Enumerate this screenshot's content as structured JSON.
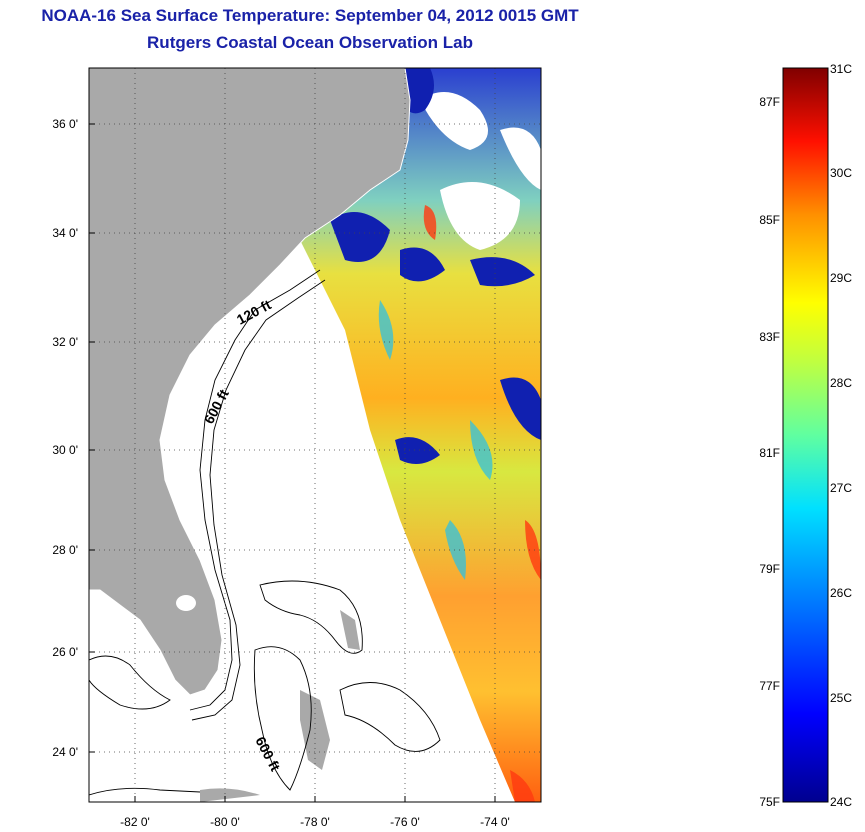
{
  "header": {
    "title": "NOAA-16 Sea Surface Temperature:  September 04, 2012 0015 GMT",
    "subtitle": "Rutgers Coastal Ocean Observation Lab"
  },
  "map": {
    "lon_ticks": [
      "-82 0'",
      "-80 0'",
      "-78 0'",
      "-76 0'",
      "-74 0'"
    ],
    "lat_ticks": [
      "36 0'",
      "34 0'",
      "32 0'",
      "30 0'",
      "28 0'",
      "26 0'",
      "24 0'"
    ],
    "contour_labels": [
      "120 ft",
      "600 ft",
      "600 ft"
    ],
    "land_color": "#a9a9a9",
    "no_data_color": "#ffffff"
  },
  "colorbar": {
    "f_labels": [
      "87F",
      "85F",
      "83F",
      "81F",
      "79F",
      "77F",
      "75F"
    ],
    "c_labels": [
      "31C",
      "30C",
      "29C",
      "28C",
      "27C",
      "26C",
      "25C",
      "24C"
    ],
    "colormap": [
      "#00008f",
      "#0000ff",
      "#0080ff",
      "#00ffff",
      "#80ff80",
      "#ffff00",
      "#ff8000",
      "#ff0000",
      "#800000"
    ]
  }
}
